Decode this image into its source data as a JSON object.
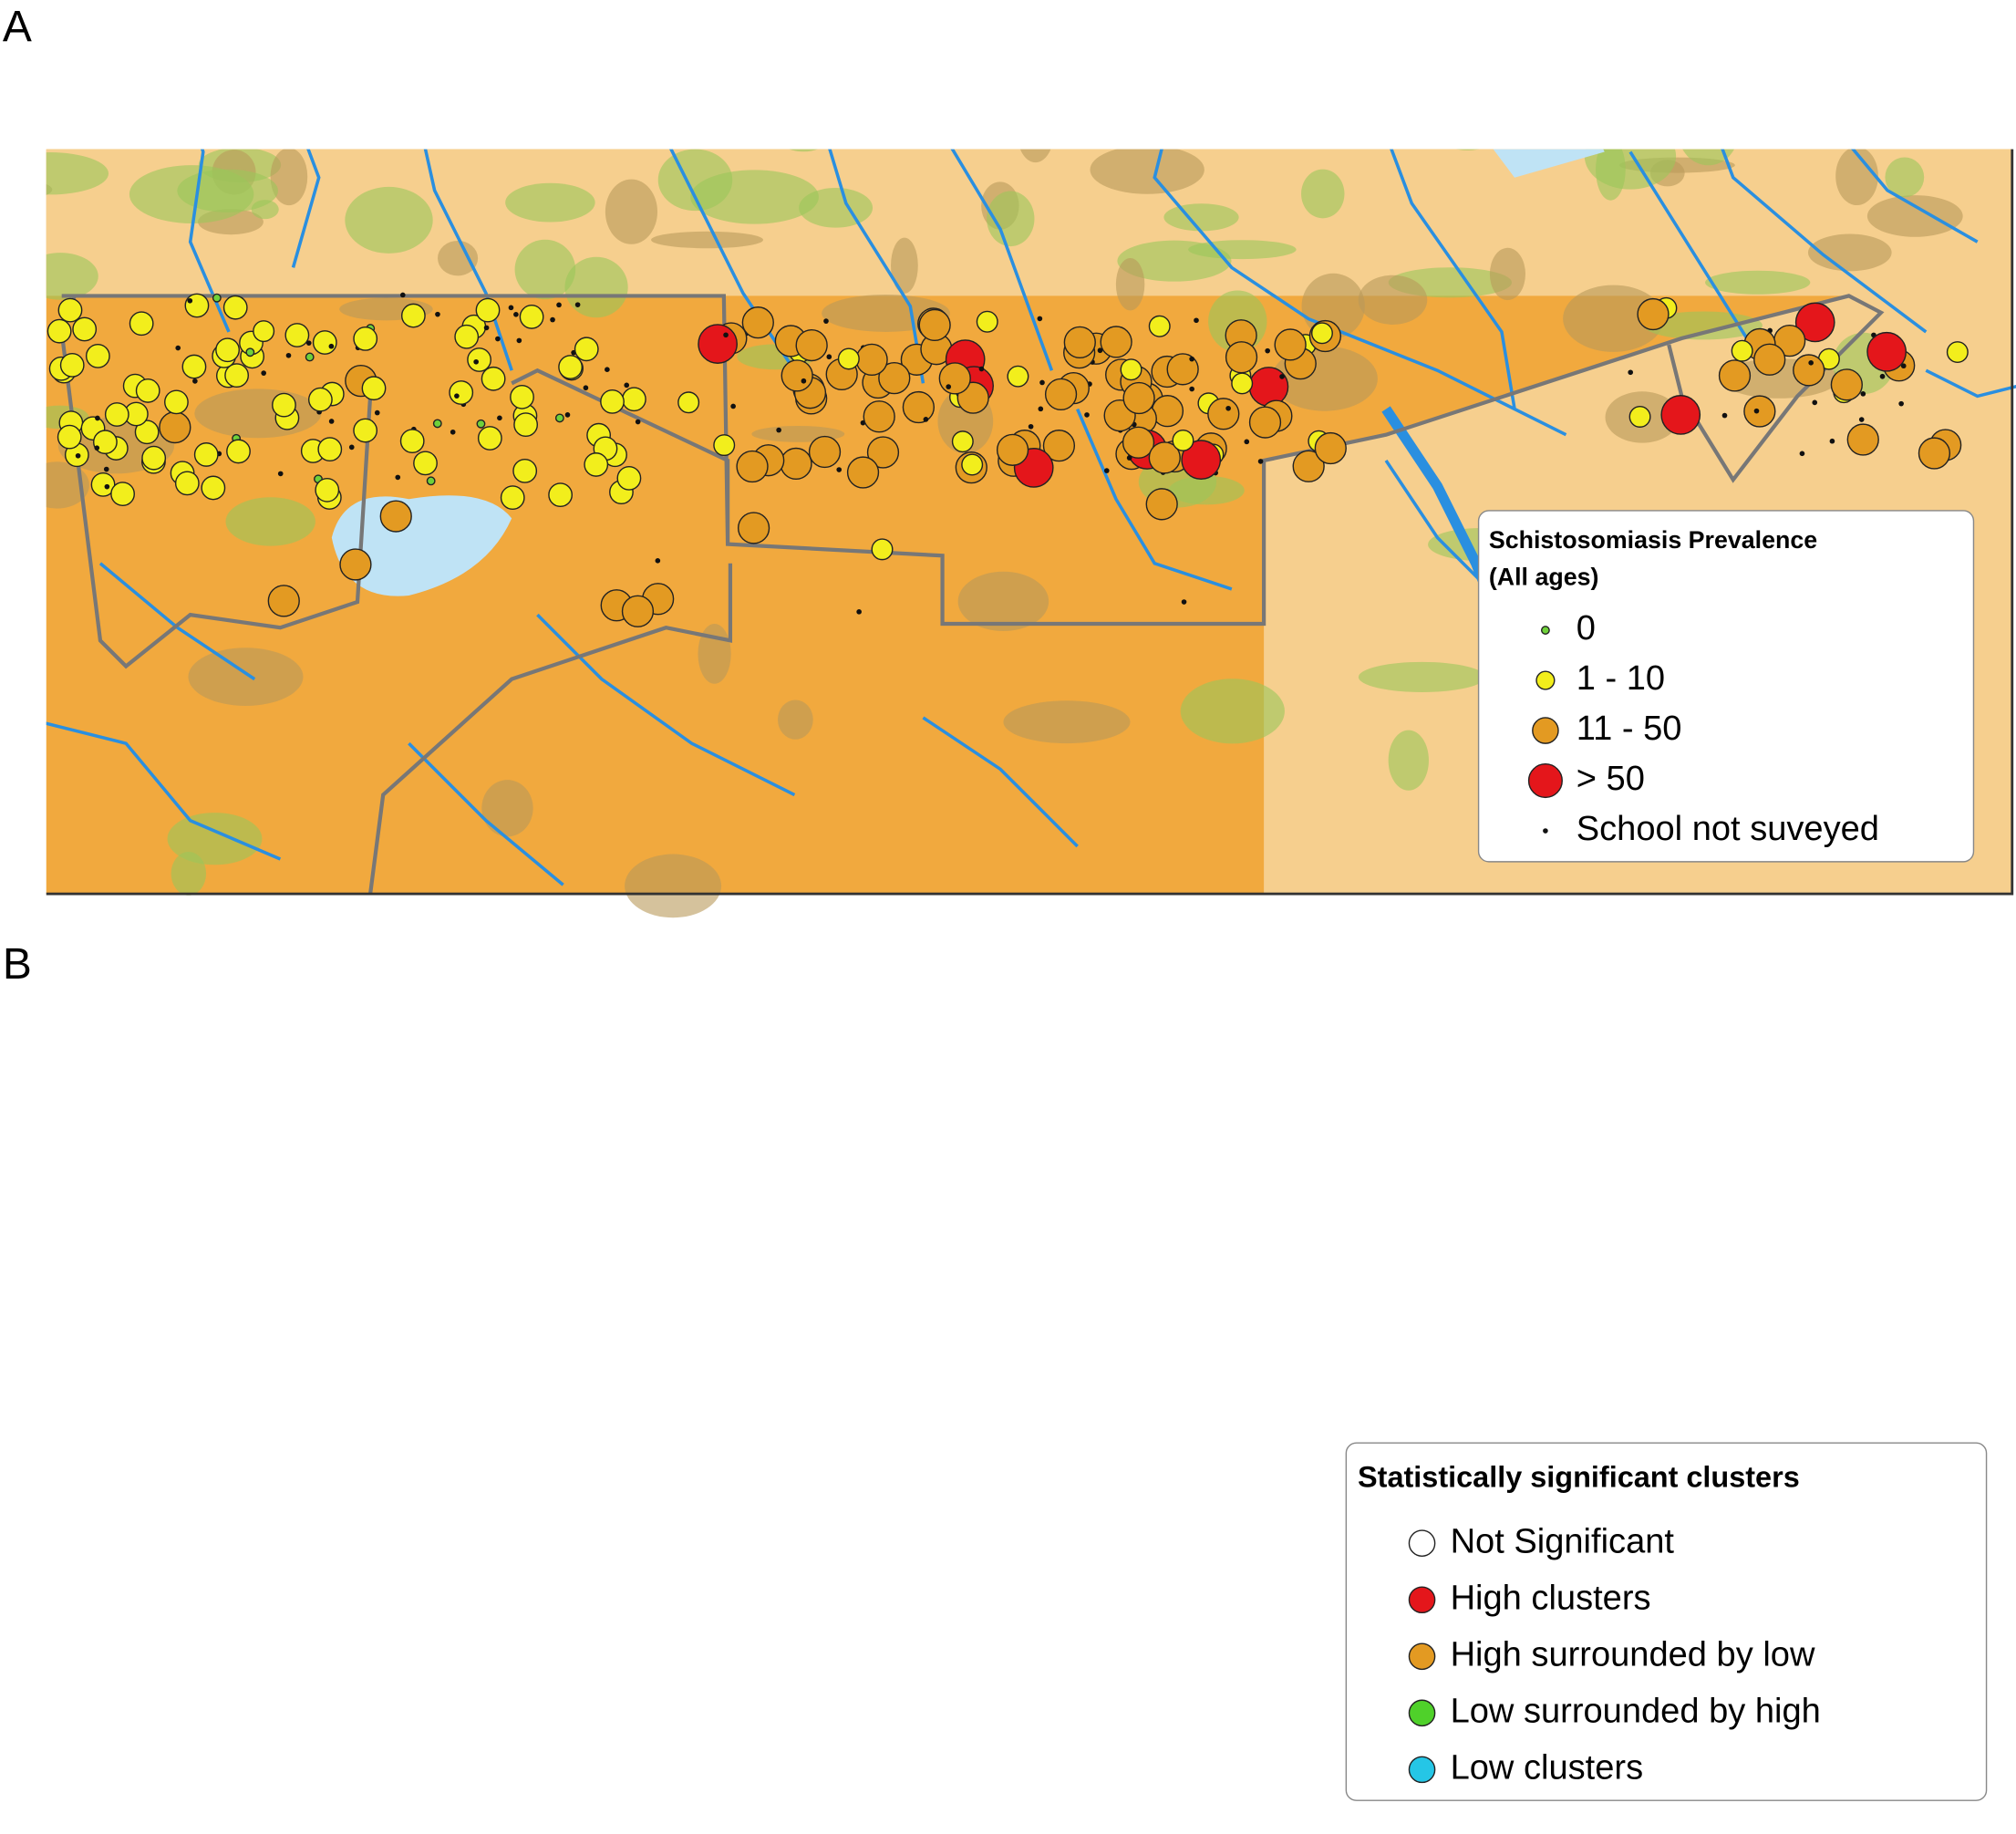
{
  "panels": [
    {
      "label": "A",
      "legend": {
        "title": "Schistosomiasis Prevalence",
        "subtitle": "(All ages)",
        "items": [
          {
            "label": "0",
            "color": "#6fd13a"
          },
          {
            "label": "1 - 10",
            "color": "#f2ee1c"
          },
          {
            "label": "11 - 50",
            "color": "#e39a22"
          },
          {
            "label": "> 50",
            "color": "#e4161b"
          },
          {
            "label": "School not suveyed",
            "color": "#111111"
          }
        ]
      }
    },
    {
      "label": "B",
      "legend": {
        "title": "Statistically significant clusters",
        "items": [
          {
            "label": "Not Significant",
            "color": "#ffffff"
          },
          {
            "label": "High clusters",
            "color": "#e4161b"
          },
          {
            "label": "High surrounded by low",
            "color": "#e39a22"
          },
          {
            "label": "Low surrounded by high",
            "color": "#4fd12a"
          },
          {
            "label": "Low clusters",
            "color": "#25c6e6"
          }
        ]
      }
    }
  ]
}
